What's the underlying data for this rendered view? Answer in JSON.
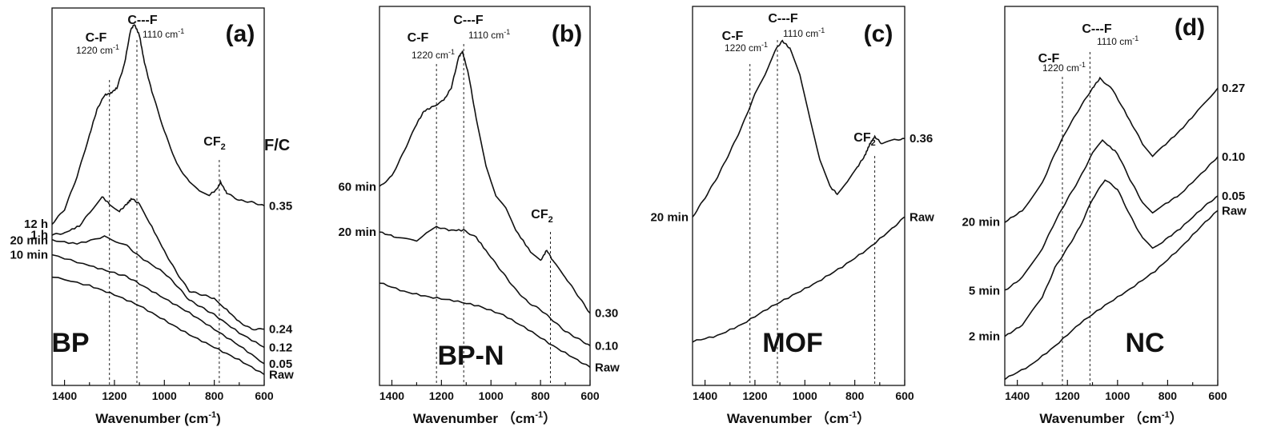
{
  "chart_data": [
    {
      "type": "line",
      "panel_label": "(a)",
      "sample": "BP",
      "xlabel": "Wavenumber (cm-1)",
      "xlim": [
        1450,
        600
      ],
      "x_ticks": [
        1400,
        1200,
        1000,
        800,
        600
      ],
      "reverse_x": true,
      "right_header": "F/C",
      "annotations": [
        {
          "text": "C-F",
          "sub": "1220 cm",
          "x": 1220
        },
        {
          "text": "C---F",
          "sub": "1110 cm",
          "x": 1110
        },
        {
          "text": "CF2",
          "x": 780
        }
      ],
      "series": [
        {
          "left_label": "",
          "right_label": "Raw",
          "points": [
            [
              1450,
              0.6
            ],
            [
              1300,
              0.55
            ],
            [
              1200,
              0.5
            ],
            [
              1100,
              0.44
            ],
            [
              1000,
              0.36
            ],
            [
              900,
              0.28
            ],
            [
              800,
              0.21
            ],
            [
              700,
              0.14
            ],
            [
              600,
              0.06
            ]
          ]
        },
        {
          "left_label": "10 min",
          "right_label": "0.05",
          "points": [
            [
              1450,
              0.72
            ],
            [
              1300,
              0.66
            ],
            [
              1200,
              0.62
            ],
            [
              1150,
              0.6
            ],
            [
              1100,
              0.56
            ],
            [
              1000,
              0.48
            ],
            [
              900,
              0.4
            ],
            [
              800,
              0.31
            ],
            [
              700,
              0.22
            ],
            [
              600,
              0.12
            ]
          ]
        },
        {
          "left_label": "20 min",
          "right_label": "0.12",
          "points": [
            [
              1450,
              0.8
            ],
            [
              1350,
              0.78
            ],
            [
              1240,
              0.82
            ],
            [
              1150,
              0.77
            ],
            [
              1100,
              0.71
            ],
            [
              1000,
              0.62
            ],
            [
              950,
              0.55
            ],
            [
              900,
              0.47
            ],
            [
              850,
              0.43
            ],
            [
              800,
              0.39
            ],
            [
              700,
              0.29
            ],
            [
              600,
              0.21
            ]
          ]
        },
        {
          "left_label": "1 h",
          "right_label": "0.24",
          "points": [
            [
              1450,
              0.83
            ],
            [
              1400,
              0.84
            ],
            [
              1340,
              0.88
            ],
            [
              1290,
              0.97
            ],
            [
              1250,
              1.04
            ],
            [
              1220,
              1.0
            ],
            [
              1180,
              0.96
            ],
            [
              1150,
              1.0
            ],
            [
              1130,
              1.03
            ],
            [
              1100,
              1.0
            ],
            [
              1060,
              0.9
            ],
            [
              1000,
              0.74
            ],
            [
              950,
              0.62
            ],
            [
              900,
              0.52
            ],
            [
              850,
              0.5
            ],
            [
              800,
              0.48
            ],
            [
              760,
              0.43
            ],
            [
              700,
              0.35
            ],
            [
              650,
              0.31
            ],
            [
              600,
              0.31
            ]
          ]
        },
        {
          "left_label": "12 h",
          "right_label": "0.35",
          "points": [
            [
              1450,
              0.89
            ],
            [
              1400,
              0.97
            ],
            [
              1350,
              1.15
            ],
            [
              1300,
              1.38
            ],
            [
              1270,
              1.52
            ],
            [
              1240,
              1.6
            ],
            [
              1215,
              1.61
            ],
            [
              1190,
              1.64
            ],
            [
              1160,
              1.77
            ],
            [
              1135,
              1.96
            ],
            [
              1120,
              1.99
            ],
            [
              1100,
              1.93
            ],
            [
              1080,
              1.78
            ],
            [
              1050,
              1.62
            ],
            [
              1000,
              1.4
            ],
            [
              950,
              1.22
            ],
            [
              900,
              1.12
            ],
            [
              860,
              1.07
            ],
            [
              820,
              1.05
            ],
            [
              790,
              1.08
            ],
            [
              775,
              1.12
            ],
            [
              750,
              1.06
            ],
            [
              700,
              1.02
            ],
            [
              650,
              1.01
            ],
            [
              600,
              0.99
            ]
          ]
        }
      ]
    },
    {
      "type": "line",
      "panel_label": "(b)",
      "sample": "BP-N",
      "xlabel": "Wavenumber （cm-1）",
      "xlim": [
        1450,
        600
      ],
      "x_ticks": [
        1400,
        1200,
        1000,
        800,
        600
      ],
      "reverse_x": true,
      "annotations": [
        {
          "text": "C-F",
          "sub": "1220 cm",
          "x": 1220
        },
        {
          "text": "C---F",
          "sub": "1110 cm",
          "x": 1110
        },
        {
          "text": "CF2",
          "x": 760
        }
      ],
      "series": [
        {
          "left_label": "",
          "right_label": "Raw",
          "points": [
            [
              1450,
              0.57
            ],
            [
              1350,
              0.52
            ],
            [
              1250,
              0.49
            ],
            [
              1150,
              0.47
            ],
            [
              1050,
              0.44
            ],
            [
              950,
              0.39
            ],
            [
              850,
              0.31
            ],
            [
              750,
              0.22
            ],
            [
              650,
              0.14
            ],
            [
              600,
              0.1
            ]
          ]
        },
        {
          "left_label": "20 min",
          "right_label": "0.10",
          "points": [
            [
              1450,
              0.85
            ],
            [
              1380,
              0.82
            ],
            [
              1300,
              0.8
            ],
            [
              1260,
              0.85
            ],
            [
              1220,
              0.88
            ],
            [
              1170,
              0.86
            ],
            [
              1110,
              0.86
            ],
            [
              1060,
              0.82
            ],
            [
              1000,
              0.71
            ],
            [
              950,
              0.62
            ],
            [
              900,
              0.53
            ],
            [
              850,
              0.46
            ],
            [
              800,
              0.42
            ],
            [
              750,
              0.36
            ],
            [
              700,
              0.3
            ],
            [
              650,
              0.26
            ],
            [
              600,
              0.22
            ]
          ]
        },
        {
          "left_label": "60 min",
          "right_label": "0.30",
          "points": [
            [
              1450,
              1.1
            ],
            [
              1400,
              1.16
            ],
            [
              1350,
              1.3
            ],
            [
              1300,
              1.45
            ],
            [
              1270,
              1.52
            ],
            [
              1240,
              1.54
            ],
            [
              1190,
              1.58
            ],
            [
              1160,
              1.65
            ],
            [
              1130,
              1.82
            ],
            [
              1115,
              1.85
            ],
            [
              1090,
              1.72
            ],
            [
              1060,
              1.48
            ],
            [
              1020,
              1.22
            ],
            [
              980,
              1.05
            ],
            [
              940,
              0.98
            ],
            [
              900,
              0.86
            ],
            [
              840,
              0.74
            ],
            [
              800,
              0.69
            ],
            [
              775,
              0.75
            ],
            [
              745,
              0.68
            ],
            [
              700,
              0.6
            ],
            [
              650,
              0.5
            ],
            [
              600,
              0.4
            ]
          ]
        }
      ]
    },
    {
      "type": "line",
      "panel_label": "(c)",
      "sample": "MOF",
      "xlabel": "Wavenumber （cm-1）",
      "xlim": [
        1450,
        600
      ],
      "x_ticks": [
        1400,
        1200,
        1000,
        800,
        600
      ],
      "reverse_x": true,
      "annotations": [
        {
          "text": "C-F",
          "sub": "1220 cm",
          "x": 1220
        },
        {
          "text": "C---F",
          "sub": "1110 cm",
          "x": 1110
        },
        {
          "text": "CF2",
          "x": 720
        }
      ],
      "series": [
        {
          "left_label": "",
          "right_label": "Raw",
          "points": [
            [
              1450,
              0.23
            ],
            [
              1350,
              0.26
            ],
            [
              1250,
              0.32
            ],
            [
              1150,
              0.4
            ],
            [
              1050,
              0.47
            ],
            [
              950,
              0.54
            ],
            [
              850,
              0.62
            ],
            [
              750,
              0.71
            ],
            [
              650,
              0.82
            ],
            [
              600,
              0.88
            ]
          ]
        },
        {
          "left_label": "20 min",
          "right_label": "0.36",
          "points": [
            [
              1450,
              0.88
            ],
            [
              1400,
              0.98
            ],
            [
              1350,
              1.09
            ],
            [
              1300,
              1.22
            ],
            [
              1250,
              1.36
            ],
            [
              1200,
              1.52
            ],
            [
              1160,
              1.62
            ],
            [
              1120,
              1.75
            ],
            [
              1090,
              1.8
            ],
            [
              1060,
              1.76
            ],
            [
              1020,
              1.62
            ],
            [
              980,
              1.4
            ],
            [
              940,
              1.18
            ],
            [
              900,
              1.04
            ],
            [
              870,
              1.0
            ],
            [
              830,
              1.06
            ],
            [
              790,
              1.14
            ],
            [
              760,
              1.2
            ],
            [
              740,
              1.26
            ],
            [
              720,
              1.3
            ],
            [
              690,
              1.26
            ],
            [
              650,
              1.28
            ],
            [
              600,
              1.29
            ]
          ]
        }
      ]
    },
    {
      "type": "line",
      "panel_label": "(d)",
      "sample": "NC",
      "xlabel": "Wavenumber （cm-1）",
      "xlim": [
        1450,
        600
      ],
      "x_ticks": [
        1400,
        1200,
        1000,
        800,
        600
      ],
      "reverse_x": true,
      "annotations": [
        {
          "text": "C-F",
          "sub": "1220 cm",
          "x": 1220
        },
        {
          "text": "C---F",
          "sub": "1110 cm",
          "x": 1110
        }
      ],
      "series": [
        {
          "left_label": "",
          "right_label": "Raw",
          "points": [
            [
              1450,
              0.02
            ],
            [
              1350,
              0.1
            ],
            [
              1250,
              0.22
            ],
            [
              1150,
              0.36
            ],
            [
              1050,
              0.47
            ],
            [
              950,
              0.57
            ],
            [
              850,
              0.68
            ],
            [
              750,
              0.82
            ],
            [
              650,
              0.98
            ],
            [
              600,
              1.05
            ]
          ]
        },
        {
          "left_label": "2 min",
          "right_label": "0.05",
          "points": [
            [
              1450,
              0.28
            ],
            [
              1380,
              0.35
            ],
            [
              1300,
              0.52
            ],
            [
              1250,
              0.7
            ],
            [
              1200,
              0.82
            ],
            [
              1150,
              0.95
            ],
            [
              1100,
              1.12
            ],
            [
              1050,
              1.24
            ],
            [
              1000,
              1.18
            ],
            [
              950,
              1.02
            ],
            [
              900,
              0.88
            ],
            [
              860,
              0.82
            ],
            [
              820,
              0.86
            ],
            [
              750,
              0.94
            ],
            [
              650,
              1.08
            ],
            [
              600,
              1.14
            ]
          ]
        },
        {
          "left_label": "5 min",
          "right_label": "0.10",
          "points": [
            [
              1450,
              0.56
            ],
            [
              1380,
              0.64
            ],
            [
              1300,
              0.82
            ],
            [
              1250,
              0.98
            ],
            [
              1200,
              1.12
            ],
            [
              1150,
              1.25
            ],
            [
              1100,
              1.4
            ],
            [
              1060,
              1.48
            ],
            [
              1000,
              1.4
            ],
            [
              950,
              1.24
            ],
            [
              900,
              1.1
            ],
            [
              860,
              1.04
            ],
            [
              820,
              1.08
            ],
            [
              750,
              1.15
            ],
            [
              650,
              1.3
            ],
            [
              600,
              1.38
            ]
          ]
        },
        {
          "left_label": "20 min",
          "right_label": "0.27",
          "points": [
            [
              1450,
              0.98
            ],
            [
              1380,
              1.05
            ],
            [
              1300,
              1.22
            ],
            [
              1250,
              1.4
            ],
            [
              1200,
              1.55
            ],
            [
              1150,
              1.68
            ],
            [
              1100,
              1.8
            ],
            [
              1070,
              1.86
            ],
            [
              1020,
              1.79
            ],
            [
              950,
              1.6
            ],
            [
              900,
              1.46
            ],
            [
              860,
              1.38
            ],
            [
              820,
              1.44
            ],
            [
              750,
              1.54
            ],
            [
              680,
              1.66
            ],
            [
              600,
              1.8
            ]
          ]
        }
      ]
    }
  ]
}
